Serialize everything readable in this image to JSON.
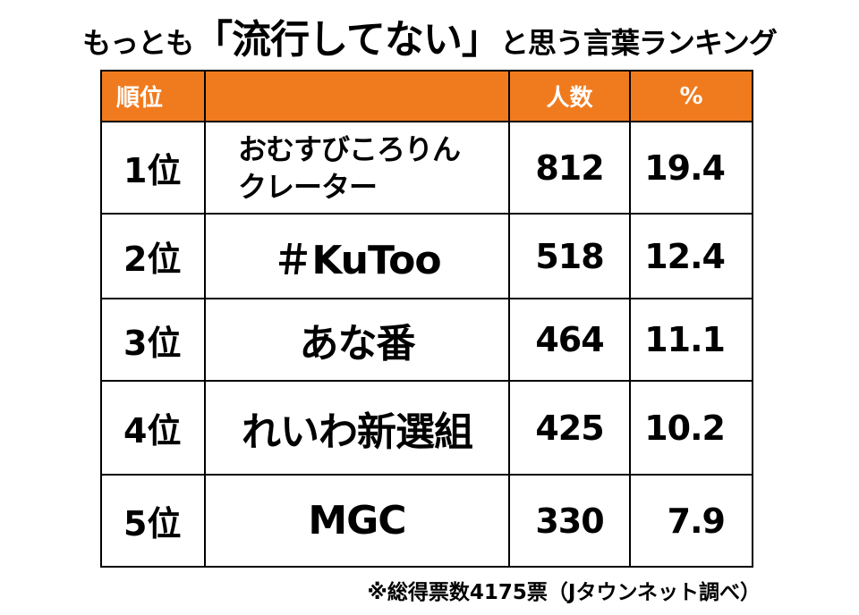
{
  "header": {
    "title": [
      "もっとも",
      "「流行してない」",
      "と思う言葉ランキング"
    ]
  },
  "table": {
    "columns": {
      "rank": "順位",
      "count": "人数",
      "percent": "%"
    },
    "rows": [
      {
        "rank": "1位",
        "word": [
          "おむすびころりん",
          "クレーター"
        ],
        "count": 812,
        "percent": 19.4
      },
      {
        "rank": "2位",
        "word": "＃KuToo",
        "count": 518,
        "percent": 12.4
      },
      {
        "rank": "3位",
        "word": "あな番",
        "count": 464,
        "percent": 11.1
      },
      {
        "rank": "4位",
        "word": "れいわ新選組",
        "count": 425,
        "percent": 10.2
      },
      {
        "rank": "5位",
        "word": "MGC",
        "count": 330,
        "percent": 7.9
      }
    ]
  },
  "footnote": "※総得票数4175票（Jタウンネット調べ）"
}
